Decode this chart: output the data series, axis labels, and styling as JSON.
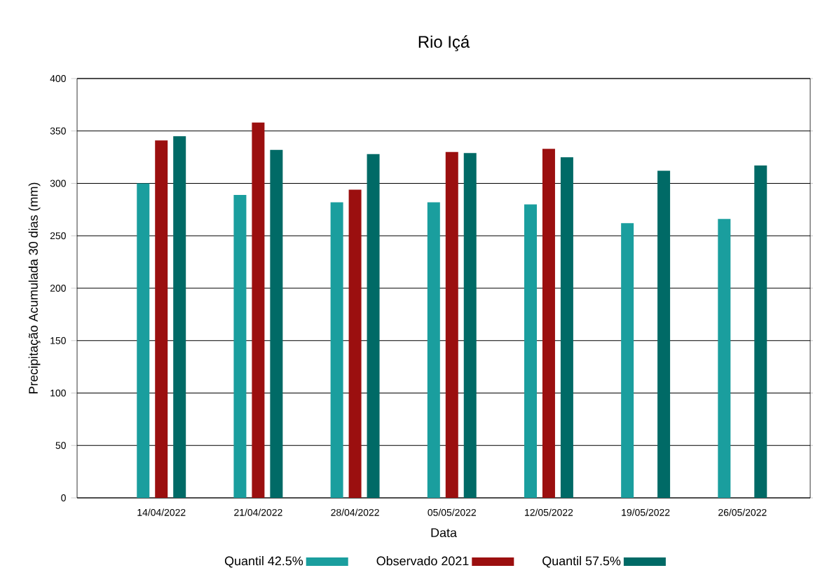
{
  "chart_data": {
    "type": "bar",
    "title": "Rio Içá",
    "xlabel": "Data",
    "ylabel": "Precipitação Acumulada 30 dias (mm)",
    "categories": [
      "14/04/2022",
      "21/04/2022",
      "28/04/2022",
      "05/05/2022",
      "12/05/2022",
      "19/05/2022",
      "26/05/2022"
    ],
    "series": [
      {
        "name": "Quantil 42.5%",
        "color": "#1a9e9e",
        "values": [
          300,
          289,
          282,
          282,
          280,
          262,
          266
        ]
      },
      {
        "name": "Observado 2021",
        "color": "#9b0f0f",
        "values": [
          341,
          358,
          294,
          330,
          333,
          null,
          null
        ]
      },
      {
        "name": "Quantil 57.5%",
        "color": "#006a66",
        "values": [
          345,
          332,
          328,
          329,
          325,
          312,
          317
        ]
      }
    ],
    "ylim": [
      0,
      400
    ],
    "yticks": [
      0,
      50,
      100,
      150,
      200,
      250,
      300,
      350,
      400
    ],
    "grid": "y",
    "legend": "bottom"
  }
}
